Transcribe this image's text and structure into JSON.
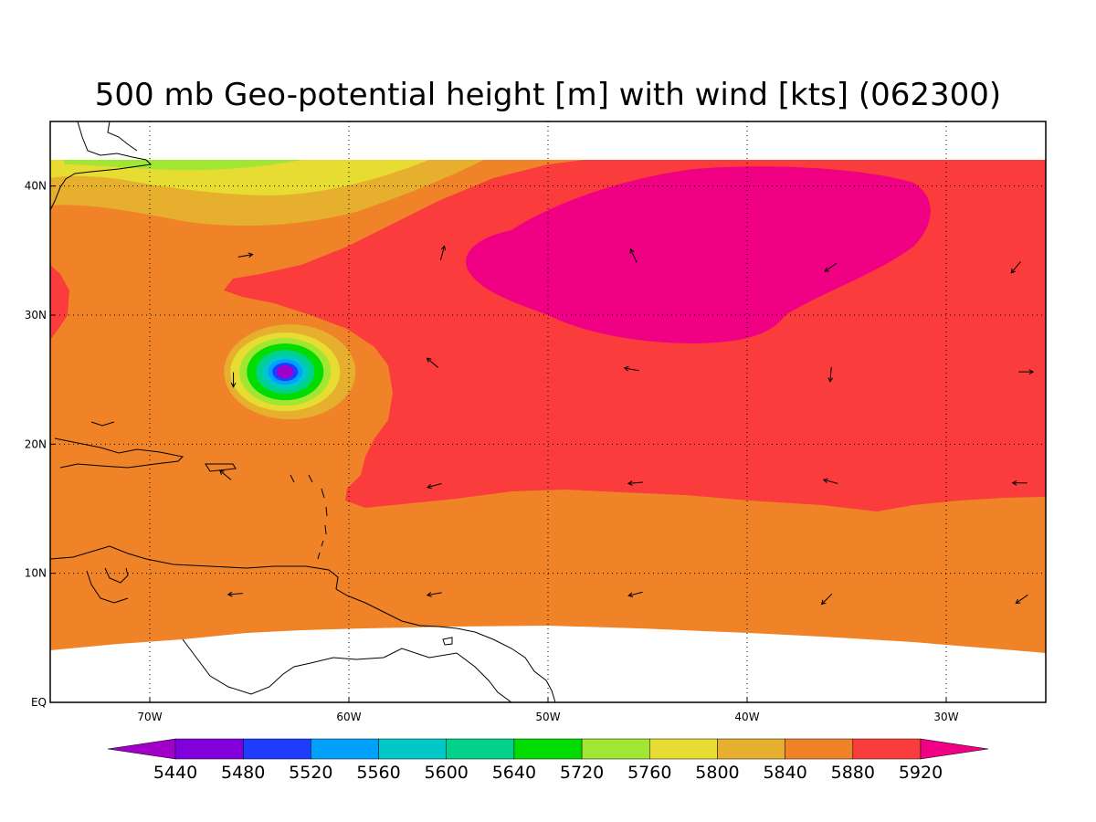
{
  "title": "500 mb Geo-potential height [m] with wind [kts] (062300)",
  "map": {
    "lon_range": [
      -75,
      -25
    ],
    "lat_range": [
      0,
      45
    ],
    "data_lat_range": [
      4,
      42
    ],
    "lon_ticks": [
      {
        "value": -70,
        "label": "70W"
      },
      {
        "value": -60,
        "label": "60W"
      },
      {
        "value": -50,
        "label": "50W"
      },
      {
        "value": -40,
        "label": "40W"
      },
      {
        "value": -30,
        "label": "30W"
      }
    ],
    "lat_ticks": [
      {
        "value": 0,
        "label": "EQ"
      },
      {
        "value": 10,
        "label": "10N"
      },
      {
        "value": 20,
        "label": "20N"
      },
      {
        "value": 30,
        "label": "30N"
      },
      {
        "value": 40,
        "label": "40N"
      }
    ],
    "grid": true
  },
  "colorbar": {
    "levels": [
      "5440",
      "5480",
      "5520",
      "5560",
      "5600",
      "5640",
      "5720",
      "5760",
      "5800",
      "5840",
      "5880",
      "5920"
    ],
    "colors": [
      "#a000c8",
      "#8200dc",
      "#1e3cff",
      "#00a0ff",
      "#00c8c8",
      "#00d28c",
      "#00dc00",
      "#a0e632",
      "#e6dc32",
      "#e6af2d",
      "#f08228",
      "#fa3c3c",
      "#f00082"
    ]
  },
  "cyclone": {
    "lon": -63.2,
    "lat": 25.6
  },
  "wind_arrows": [
    {
      "lon": -65.2,
      "lat": 34.6,
      "dir": 10
    },
    {
      "lon": -55.3,
      "lat": 34.8,
      "dir": 75
    },
    {
      "lon": -45.7,
      "lat": 34.6,
      "dir": 115
    },
    {
      "lon": -35.8,
      "lat": 33.7,
      "dir": 215
    },
    {
      "lon": -26.5,
      "lat": 33.7,
      "dir": 230
    },
    {
      "lon": -55.8,
      "lat": 26.3,
      "dir": 140
    },
    {
      "lon": -45.8,
      "lat": 25.8,
      "dir": 170
    },
    {
      "lon": -35.8,
      "lat": 25.4,
      "dir": 265
    },
    {
      "lon": -26.0,
      "lat": 25.6,
      "dir": 0
    },
    {
      "lon": -65.8,
      "lat": 25.0,
      "dir": 270
    },
    {
      "lon": -55.7,
      "lat": 16.8,
      "dir": 195
    },
    {
      "lon": -45.6,
      "lat": 17.0,
      "dir": 185
    },
    {
      "lon": -35.8,
      "lat": 17.1,
      "dir": 165
    },
    {
      "lon": -26.3,
      "lat": 17.0,
      "dir": 180
    },
    {
      "lon": -66.2,
      "lat": 17.6,
      "dir": 140
    },
    {
      "lon": -65.7,
      "lat": 8.4,
      "dir": 185
    },
    {
      "lon": -55.7,
      "lat": 8.4,
      "dir": 190
    },
    {
      "lon": -45.6,
      "lat": 8.4,
      "dir": 195
    },
    {
      "lon": -36.0,
      "lat": 8.0,
      "dir": 225
    },
    {
      "lon": -26.2,
      "lat": 8.0,
      "dir": 215
    }
  ]
}
